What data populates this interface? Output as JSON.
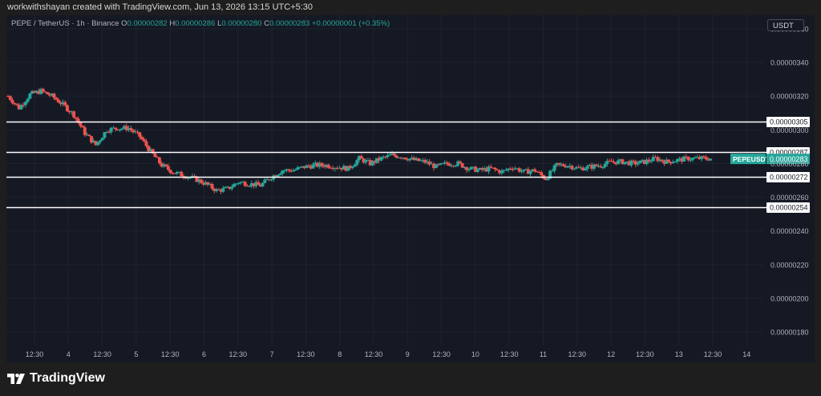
{
  "header": {
    "attribution": "workwithshayan created with TradingView.com, Jun 13, 2026 13:15 UTC+5:30"
  },
  "legend": {
    "symbol": "PEPE / TetherUS · 1h · Binance",
    "open_label": "O",
    "open": "0.00000282",
    "high_label": "H",
    "high": "0.00000286",
    "low_label": "L",
    "low": "0.00000280",
    "close_label": "C",
    "close": "0.00000283",
    "change": "+0.00000001 (+0.35%)"
  },
  "currency_badge": "USDT",
  "footer": {
    "brand": "TradingView",
    "logo_icon": "tradingview-logo-icon"
  },
  "colors": {
    "up": "#26a69a",
    "down": "#ef5350",
    "background": "#151924",
    "grid": "#1f2330",
    "level_line": "#ffffff"
  },
  "chart_data": {
    "type": "candlestick",
    "symbol": "PEPEUSDT",
    "interval": "1h",
    "exchange": "Binance",
    "ylim": [
      1.72e-06,
      3.68e-06
    ],
    "yticks": [
      "0.00000360",
      "0.00000340",
      "0.00000320",
      "0.00000300",
      "0.00000280",
      "0.00000260",
      "0.00000240",
      "0.00000220",
      "0.00000200",
      "0.00000180"
    ],
    "xticks": [
      "12:30",
      "4",
      "12:30",
      "5",
      "12:30",
      "6",
      "12:30",
      "7",
      "12:30",
      "8",
      "12:30",
      "9",
      "12:30",
      "10",
      "12:30",
      "11",
      "12:30",
      "12",
      "12:30",
      "13",
      "12:30",
      "14"
    ],
    "bold_xticks": [
      "8"
    ],
    "horizontal_levels": [
      {
        "label": "0.00000305",
        "value": 3.05e-06
      },
      {
        "label": "0.00000287",
        "value": 2.87e-06
      },
      {
        "label": "0.00000272",
        "value": 2.72e-06
      },
      {
        "label": "0.00000254",
        "value": 2.54e-06
      }
    ],
    "last_price": {
      "label": "PEPEUSDT",
      "value": "0.00000283"
    },
    "price_path": [
      [
        0,
        320
      ],
      [
        5,
        313
      ],
      [
        10,
        321
      ],
      [
        15,
        323
      ],
      [
        20,
        320
      ],
      [
        25,
        315
      ],
      [
        30,
        309
      ],
      [
        35,
        298
      ],
      [
        40,
        291
      ],
      [
        45,
        300
      ],
      [
        50,
        301
      ],
      [
        55,
        301
      ],
      [
        60,
        296
      ],
      [
        65,
        287
      ],
      [
        70,
        279
      ],
      [
        75,
        275
      ],
      [
        80,
        273
      ],
      [
        85,
        271
      ],
      [
        90,
        268
      ],
      [
        95,
        264
      ],
      [
        100,
        265
      ],
      [
        105,
        269
      ],
      [
        110,
        268
      ],
      [
        115,
        267
      ],
      [
        120,
        272
      ],
      [
        125,
        276
      ],
      [
        130,
        276
      ],
      [
        135,
        278
      ],
      [
        140,
        279
      ],
      [
        145,
        279
      ],
      [
        150,
        278
      ],
      [
        155,
        277
      ],
      [
        160,
        283
      ],
      [
        165,
        280
      ],
      [
        170,
        283
      ],
      [
        175,
        285
      ],
      [
        180,
        284
      ],
      [
        185,
        282
      ],
      [
        190,
        281
      ],
      [
        195,
        278
      ],
      [
        200,
        280
      ],
      [
        205,
        280
      ],
      [
        210,
        277
      ],
      [
        215,
        276
      ],
      [
        220,
        277
      ],
      [
        225,
        275
      ],
      [
        230,
        278
      ],
      [
        235,
        275
      ],
      [
        240,
        276
      ],
      [
        245,
        271
      ],
      [
        250,
        279
      ],
      [
        255,
        279
      ],
      [
        260,
        277
      ],
      [
        265,
        278
      ],
      [
        270,
        279
      ],
      [
        275,
        281
      ],
      [
        280,
        281
      ],
      [
        285,
        280
      ],
      [
        290,
        281
      ],
      [
        295,
        283
      ],
      [
        300,
        281
      ],
      [
        305,
        282
      ],
      [
        310,
        283
      ],
      [
        315,
        283
      ],
      [
        320,
        283
      ]
    ]
  }
}
